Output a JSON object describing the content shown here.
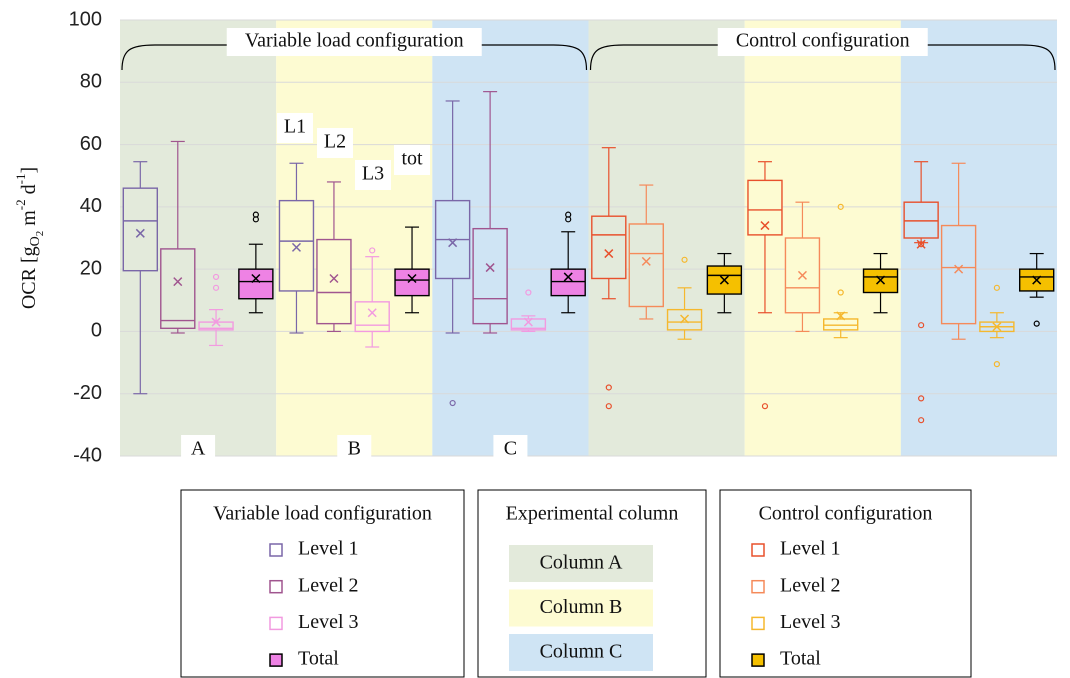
{
  "chart_data": {
    "type": "box",
    "y_label_parts": [
      "OCR [g",
      "O",
      "2",
      " m",
      "-2",
      " d",
      "-1",
      "]"
    ],
    "ylim": [
      -40,
      100
    ],
    "yticks": [
      -40,
      -20,
      0,
      20,
      40,
      60,
      80,
      100
    ],
    "grid": true,
    "columns_title": "Experimental column",
    "columns": [
      {
        "name": "Column A",
        "color": "#e3eadb"
      },
      {
        "name": "Column B",
        "color": "#fdfbd2"
      },
      {
        "name": "Column C",
        "color": "#cfe4f4"
      }
    ],
    "configurations": [
      {
        "name": "Variable load configuration",
        "column_labels": [
          "A",
          "B",
          "C"
        ],
        "box_labels": [
          "L1",
          "L2",
          "L3",
          "tot"
        ],
        "series": [
          {
            "name": "Level 1",
            "color": "#7a67a8",
            "fill": "none",
            "boxes": [
              {
                "min": -20,
                "q1": 19.5,
                "median": 35.5,
                "q3": 46,
                "max": 54.5,
                "mean": 31.5,
                "outliers": []
              },
              {
                "min": -0.5,
                "q1": 13,
                "median": 29,
                "q3": 42,
                "max": 54,
                "mean": 27,
                "outliers": []
              },
              {
                "min": -0.5,
                "q1": 17,
                "median": 29.5,
                "q3": 42,
                "max": 74,
                "mean": 28.5,
                "outliers": [
                  -23
                ]
              }
            ]
          },
          {
            "name": "Level 2",
            "color": "#a0558f",
            "fill": "none",
            "boxes": [
              {
                "min": -0.5,
                "q1": 1,
                "median": 3.5,
                "q3": 26.5,
                "max": 61,
                "mean": 16,
                "outliers": []
              },
              {
                "min": 0,
                "q1": 2.5,
                "median": 12.5,
                "q3": 29.5,
                "max": 48,
                "mean": 17,
                "outliers": []
              },
              {
                "min": -0.5,
                "q1": 2.5,
                "median": 10.5,
                "q3": 33,
                "max": 77,
                "mean": 20.5,
                "outliers": []
              }
            ]
          },
          {
            "name": "Level 3",
            "color": "#f29ae0",
            "fill": "none",
            "boxes": [
              {
                "min": -4.5,
                "q1": 0.5,
                "median": 1,
                "q3": 3,
                "max": 7,
                "mean": 3,
                "outliers": [
                  14,
                  17.5
                ]
              },
              {
                "min": -5,
                "q1": 0,
                "median": 2,
                "q3": 9.5,
                "max": 24,
                "mean": 6,
                "outliers": [
                  26
                ]
              },
              {
                "min": 0,
                "q1": 0.5,
                "median": 1,
                "q3": 4,
                "max": 5,
                "mean": 3,
                "outliers": [
                  12.5
                ]
              }
            ]
          },
          {
            "name": "Total",
            "color": "#000000",
            "fill": "#ee82e4",
            "boxes": [
              {
                "min": 6,
                "q1": 10.5,
                "median": 16,
                "q3": 20,
                "max": 28,
                "mean": 17,
                "outliers": [
                  36,
                  37.5
                ]
              },
              {
                "min": 6,
                "q1": 11.5,
                "median": 16.5,
                "q3": 20,
                "max": 33.5,
                "mean": 17,
                "outliers": []
              },
              {
                "min": 6,
                "q1": 11.5,
                "median": 16,
                "q3": 20,
                "max": 32,
                "mean": 17.5,
                "outliers": [
                  36,
                  37.5
                ]
              }
            ]
          }
        ]
      },
      {
        "name": "Control configuration",
        "series": [
          {
            "name": "Level 1",
            "color": "#e8502c",
            "fill": "none",
            "boxes": [
              {
                "min": 10.5,
                "q1": 17,
                "median": 31,
                "q3": 37,
                "max": 59,
                "mean": 25,
                "outliers": [
                  -18,
                  -24
                ]
              },
              {
                "min": 6,
                "q1": 31,
                "median": 39,
                "q3": 48.5,
                "max": 54.5,
                "mean": 34,
                "outliers": [
                  -24
                ]
              },
              {
                "min": 28.5,
                "q1": 30,
                "median": 35.5,
                "q3": 41.5,
                "max": 54.5,
                "mean": 28,
                "outliers": [
                  28,
                  2,
                  -21.5,
                  -28.5
                ]
              }
            ]
          },
          {
            "name": "Level 2",
            "color": "#f58a5a",
            "fill": "none",
            "boxes": [
              {
                "min": 4,
                "q1": 8,
                "median": 25,
                "q3": 34.5,
                "max": 47,
                "mean": 22.5,
                "outliers": []
              },
              {
                "min": 0,
                "q1": 6,
                "median": 14,
                "q3": 30,
                "max": 41.5,
                "mean": 18,
                "outliers": []
              },
              {
                "min": -2.5,
                "q1": 2.5,
                "median": 20.5,
                "q3": 34,
                "max": 54,
                "mean": 20,
                "outliers": []
              }
            ]
          },
          {
            "name": "Level 3",
            "color": "#f5b82e",
            "fill": "none",
            "boxes": [
              {
                "min": -2.5,
                "q1": 0.5,
                "median": 3,
                "q3": 7,
                "max": 14,
                "mean": 4,
                "outliers": [
                  23
                ]
              },
              {
                "min": -2,
                "q1": 0.5,
                "median": 2,
                "q3": 4,
                "max": 6,
                "mean": 5,
                "outliers": [
                  12.5,
                  40
                ]
              },
              {
                "min": -2,
                "q1": 0,
                "median": 1.5,
                "q3": 3,
                "max": 6,
                "mean": 1.5,
                "outliers": [
                  14,
                  -10.5
                ]
              }
            ]
          },
          {
            "name": "Total",
            "color": "#000000",
            "fill": "#f5c000",
            "boxes": [
              {
                "min": 6,
                "q1": 12,
                "median": 18,
                "q3": 21,
                "max": 25,
                "mean": 16.5,
                "outliers": []
              },
              {
                "min": 6,
                "q1": 12.5,
                "median": 17.5,
                "q3": 20,
                "max": 25,
                "mean": 16.5,
                "outliers": []
              },
              {
                "min": 11,
                "q1": 13,
                "median": 17.5,
                "q3": 20,
                "max": 25,
                "mean": 16.5,
                "outliers": [
                  2.5
                ]
              }
            ]
          }
        ]
      }
    ]
  }
}
